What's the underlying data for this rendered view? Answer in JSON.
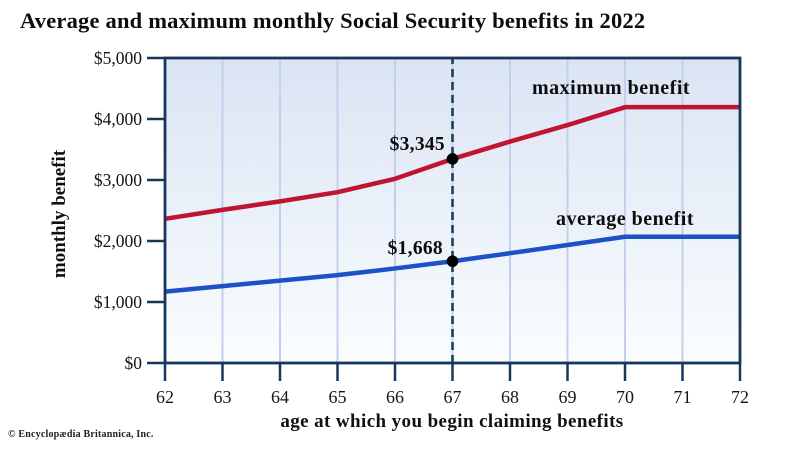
{
  "title": "Average and maximum monthly Social Security benefits in 2022",
  "copyright": "© Encyclopædia Britannica, Inc.",
  "chart_data": {
    "type": "line",
    "title": "Average and maximum monthly Social Security benefits in 2022",
    "xlabel": "age at which you begin claiming benefits",
    "ylabel": "monthly benefit",
    "x": [
      62,
      63,
      64,
      65,
      66,
      67,
      68,
      69,
      70,
      71,
      72
    ],
    "x_tick_labels": [
      "62",
      "63",
      "64",
      "65",
      "66",
      "67",
      "68",
      "69",
      "70",
      "71",
      "72"
    ],
    "y_ticks": [
      {
        "value": 0,
        "label": "$0"
      },
      {
        "value": 1000,
        "label": "$1,000"
      },
      {
        "value": 2000,
        "label": "$2,000"
      },
      {
        "value": 3000,
        "label": "$3,000"
      },
      {
        "value": 4000,
        "label": "$4,000"
      },
      {
        "value": 5000,
        "label": "$5,000"
      }
    ],
    "xlim": [
      62,
      72
    ],
    "ylim": [
      0,
      5000
    ],
    "grid": "vertical-only",
    "legend_position": "inline-labels-above-lines",
    "series": [
      {
        "name": "maximum benefit",
        "color": "#bf1432",
        "values": [
          2364,
          2510,
          2650,
          2800,
          3020,
          3345,
          3630,
          3900,
          4194,
          4194,
          4194
        ]
      },
      {
        "name": "average benefit",
        "color": "#1e50c8",
        "values": [
          1170,
          1260,
          1350,
          1440,
          1550,
          1668,
          1800,
          1935,
          2070,
          2070,
          2070
        ]
      }
    ],
    "annotations": [
      {
        "series": "maximum benefit",
        "x": 67,
        "y": 3345,
        "label": "$3,345"
      },
      {
        "series": "average benefit",
        "x": 67,
        "y": 1668,
        "label": "$1,668"
      }
    ],
    "reference_line": {
      "type": "vertical-dashed",
      "x": 67
    },
    "colors": {
      "axis": "#17375c",
      "gridline": "#c3d0eb",
      "dashed_line": "#1c3e54",
      "marker": "#000000",
      "plot_bg_top": "#dbe4f4",
      "plot_bg_bottom": "#fafdfe",
      "background": "#ffffff",
      "text": "#111111"
    }
  }
}
